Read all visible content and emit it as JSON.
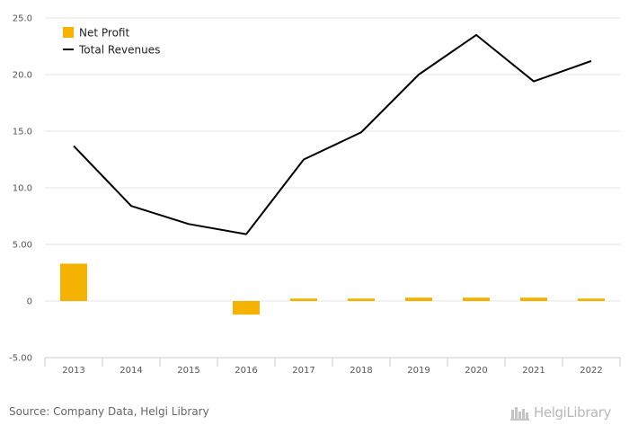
{
  "chart_data": {
    "type": "bar",
    "categories": [
      "2013",
      "2014",
      "2015",
      "2016",
      "2017",
      "2018",
      "2019",
      "2020",
      "2021",
      "2022"
    ],
    "series": [
      {
        "name": "Net Profit",
        "type": "bar",
        "color": "#f5b200",
        "values": [
          3.3,
          0,
          0,
          -1.2,
          0.22,
          0.22,
          0.3,
          0.3,
          0.3,
          0.22
        ]
      },
      {
        "name": "Total Revenues",
        "type": "line",
        "color": "#000000",
        "values": [
          13.7,
          8.4,
          6.8,
          5.9,
          12.5,
          14.9,
          20.0,
          23.5,
          19.4,
          21.2
        ]
      }
    ],
    "y_ticks": [
      "25.0",
      "20.0",
      "15.0",
      "10.0",
      "5.00",
      "0",
      "-5.00"
    ],
    "ylim": [
      -5,
      25
    ],
    "grid": true,
    "legend_position": "top-left"
  },
  "source": "Source: Company Data, Helgi Library",
  "brand": {
    "name": "HelgiLibrary",
    "icon": "library-logo-icon",
    "color": "#b8b8b8"
  },
  "colors": {
    "grid": "#e6e6e6",
    "axis": "#cccccc"
  }
}
